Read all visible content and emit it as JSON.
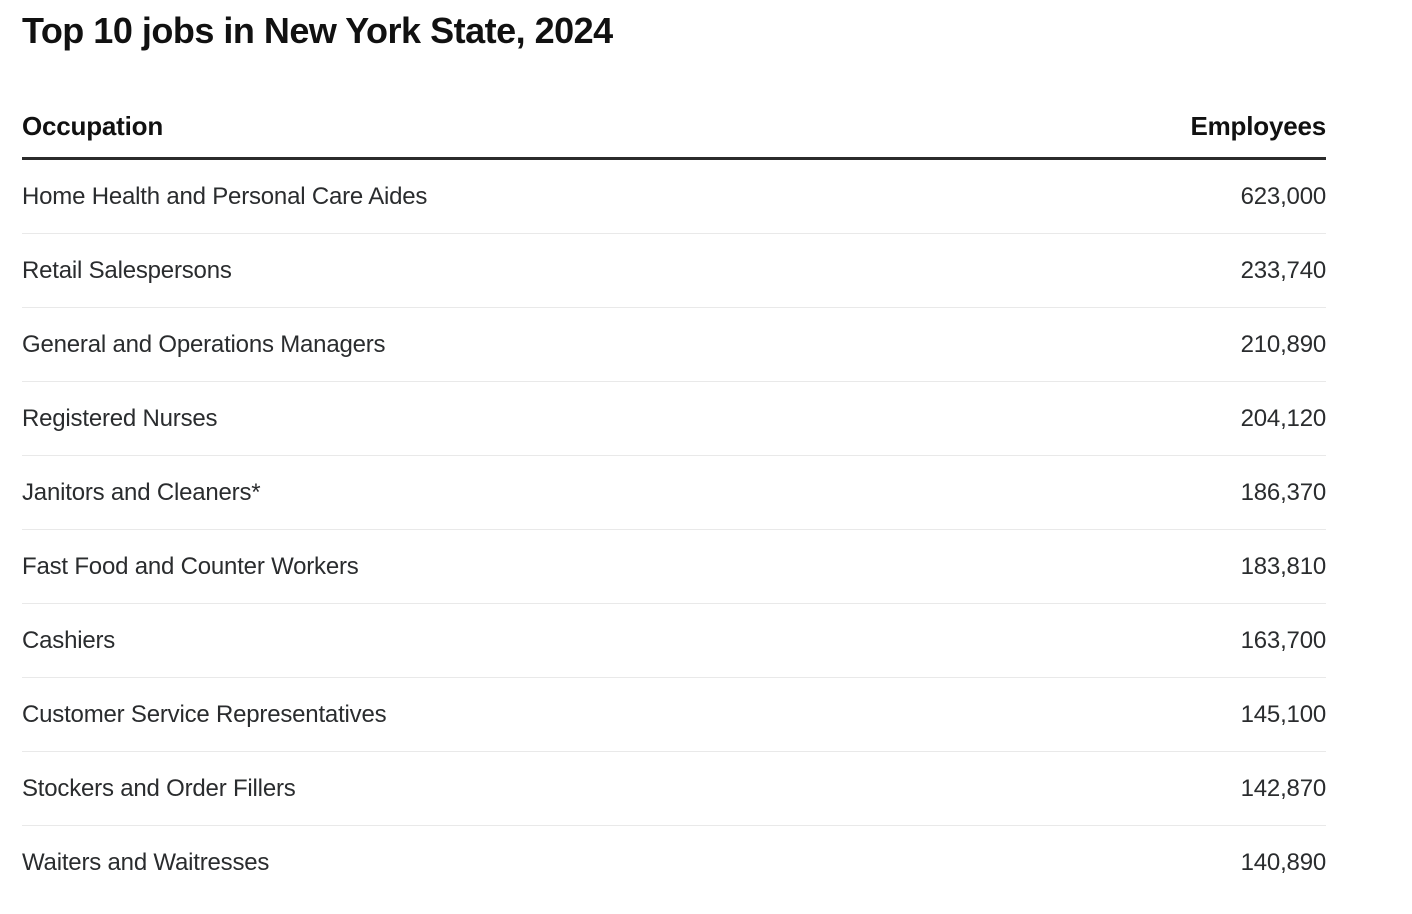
{
  "page": {
    "title": "Top 10 jobs in New York State, 2024"
  },
  "colors": {
    "header_rule": "#2b2b2b",
    "row_divider": "#e9e9e9",
    "text": "#2a2c2e",
    "heading_text": "#111111",
    "background": "#ffffff"
  },
  "table": {
    "columns": {
      "occupation": "Occupation",
      "employees": "Employees"
    },
    "rows": [
      {
        "occupation": "Home Health and Personal Care Aides",
        "employees": "623,000"
      },
      {
        "occupation": "Retail Salespersons",
        "employees": "233,740"
      },
      {
        "occupation": "General and Operations Managers",
        "employees": "210,890"
      },
      {
        "occupation": "Registered Nurses",
        "employees": "204,120"
      },
      {
        "occupation": "Janitors and Cleaners*",
        "employees": "186,370"
      },
      {
        "occupation": "Fast Food and Counter Workers",
        "employees": "183,810"
      },
      {
        "occupation": "Cashiers",
        "employees": "163,700"
      },
      {
        "occupation": "Customer Service Representatives",
        "employees": "145,100"
      },
      {
        "occupation": "Stockers and Order Fillers",
        "employees": "142,870"
      },
      {
        "occupation": "Waiters and Waitresses",
        "employees": "140,890"
      }
    ]
  },
  "chart_data": {
    "type": "table",
    "title": "Top 10 jobs in New York State, 2024",
    "columns": [
      "Occupation",
      "Employees"
    ],
    "rows": [
      [
        "Home Health and Personal Care Aides",
        623000
      ],
      [
        "Retail Salespersons",
        233740
      ],
      [
        "General and Operations Managers",
        210890
      ],
      [
        "Registered Nurses",
        204120
      ],
      [
        "Janitors and Cleaners*",
        186370
      ],
      [
        "Fast Food and Counter Workers",
        183810
      ],
      [
        "Cashiers",
        163700
      ],
      [
        "Customer Service Representatives",
        145100
      ],
      [
        "Stockers and Order Fillers",
        142870
      ],
      [
        "Waiters and Waitresses",
        140890
      ]
    ]
  }
}
